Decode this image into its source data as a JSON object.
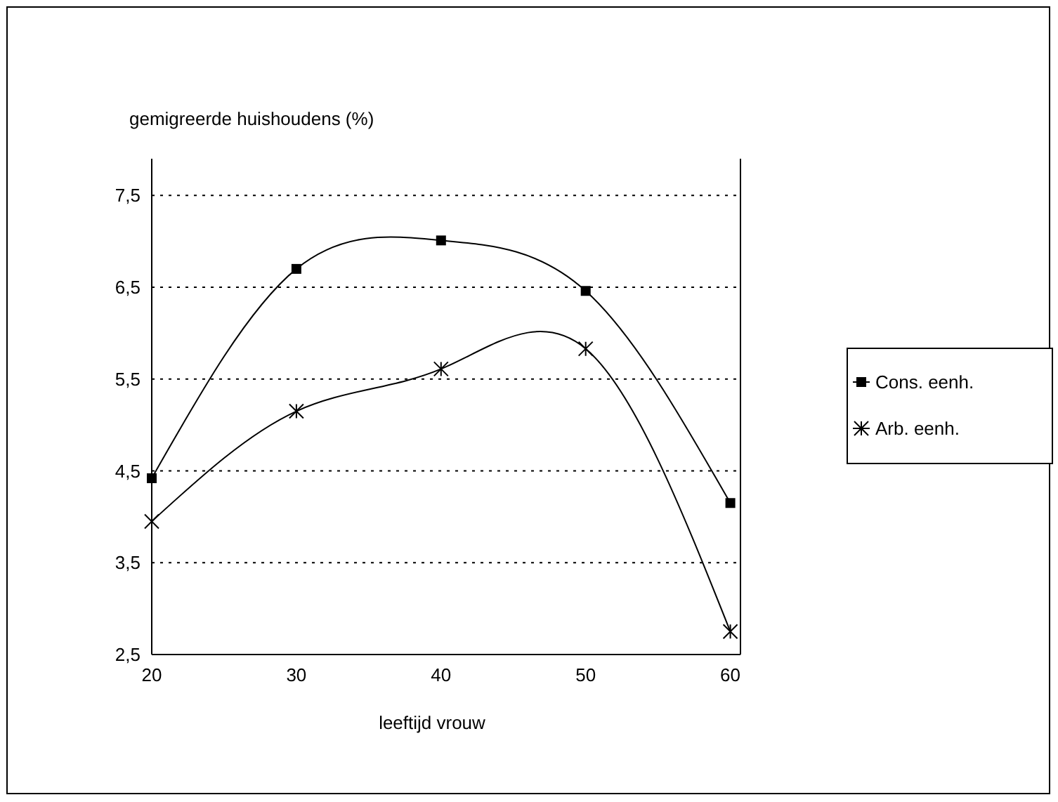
{
  "chart_data": {
    "type": "line",
    "ylabel": "gemigreerde huishoudens (%)",
    "xlabel": "leeftijd vrouw",
    "x": [
      20,
      30,
      40,
      50,
      60
    ],
    "series": [
      {
        "name": "Cons. eenh.",
        "color": "#000000",
        "marker": "square",
        "values": [
          4.42,
          6.7,
          7.01,
          6.46,
          4.15
        ]
      },
      {
        "name": "Arb. eenh.",
        "color": "#000000",
        "marker": "cross",
        "values": [
          3.95,
          5.15,
          5.61,
          5.83,
          2.75
        ]
      }
    ],
    "xlim": [
      20,
      60.7
    ],
    "ylim": [
      2.5,
      7.9
    ],
    "xticks": [
      20,
      30,
      40,
      50,
      60
    ],
    "yticks": [
      {
        "value": 2.5,
        "label": "2,5"
      },
      {
        "value": 3.5,
        "label": "3,5"
      },
      {
        "value": 4.5,
        "label": "4,5"
      },
      {
        "value": 5.5,
        "label": "5,5"
      },
      {
        "value": 6.5,
        "label": "6,5"
      },
      {
        "value": 7.5,
        "label": "7,5"
      }
    ],
    "grid": "y",
    "legend": "right",
    "line_style": "solid"
  }
}
